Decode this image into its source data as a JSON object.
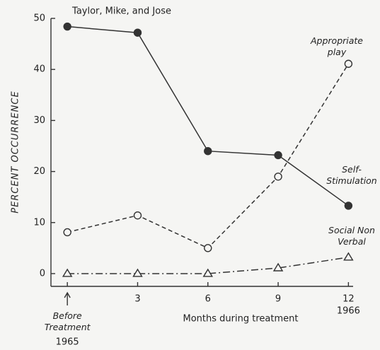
{
  "chart_data": {
    "type": "line",
    "title": "Taylor, Mike, and Jose",
    "x_label": "Months during treatment",
    "y_label": "PERCENT OCCURRENCE",
    "x": [
      0,
      3,
      6,
      9,
      12
    ],
    "xlim": [
      -0.7,
      12.2
    ],
    "xticks": [
      {
        "value": 0,
        "label": "Before Treatment"
      },
      3,
      6,
      9,
      12
    ],
    "ylim": [
      -2.5,
      50
    ],
    "yticks": [
      0,
      10,
      20,
      30,
      40,
      50
    ],
    "annotations": [
      "1965",
      "1966"
    ],
    "series": [
      {
        "name": "Self-Stimulation",
        "color": "#333333",
        "dash": "solid",
        "marker": "filled-circle",
        "values": [
          48.4,
          47.2,
          24,
          23.2,
          13.3
        ]
      },
      {
        "name": "Appropriate play",
        "color": "#333333",
        "dash": "dashed",
        "marker": "open-circle",
        "values": [
          8.1,
          11.4,
          5,
          19,
          41.1
        ]
      },
      {
        "name": "Social Non Verbal",
        "color": "#333333",
        "dash": "dashdot",
        "marker": "open-triangle",
        "values": [
          0,
          0,
          0,
          1.1,
          3.2
        ]
      }
    ]
  }
}
